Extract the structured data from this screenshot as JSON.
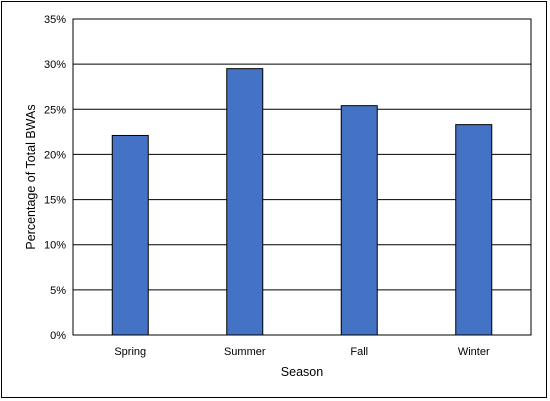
{
  "chart_data": {
    "type": "bar",
    "title": "",
    "xlabel": "Season",
    "ylabel": "Percentage of Total BWAs",
    "categories": [
      "Spring",
      "Summer",
      "Fall",
      "Winter"
    ],
    "values": [
      22.1,
      29.5,
      25.4,
      23.3
    ],
    "ylim": [
      0,
      35
    ],
    "y_ticks": [
      0,
      5,
      10,
      15,
      20,
      25,
      30,
      35
    ],
    "y_tick_labels": [
      "0%",
      "5%",
      "10%",
      "15%",
      "20%",
      "25%",
      "30%",
      "35%"
    ],
    "grid": true,
    "legend": "none",
    "bar_color": "#4472C4",
    "bar_edge_color": "#000000"
  }
}
